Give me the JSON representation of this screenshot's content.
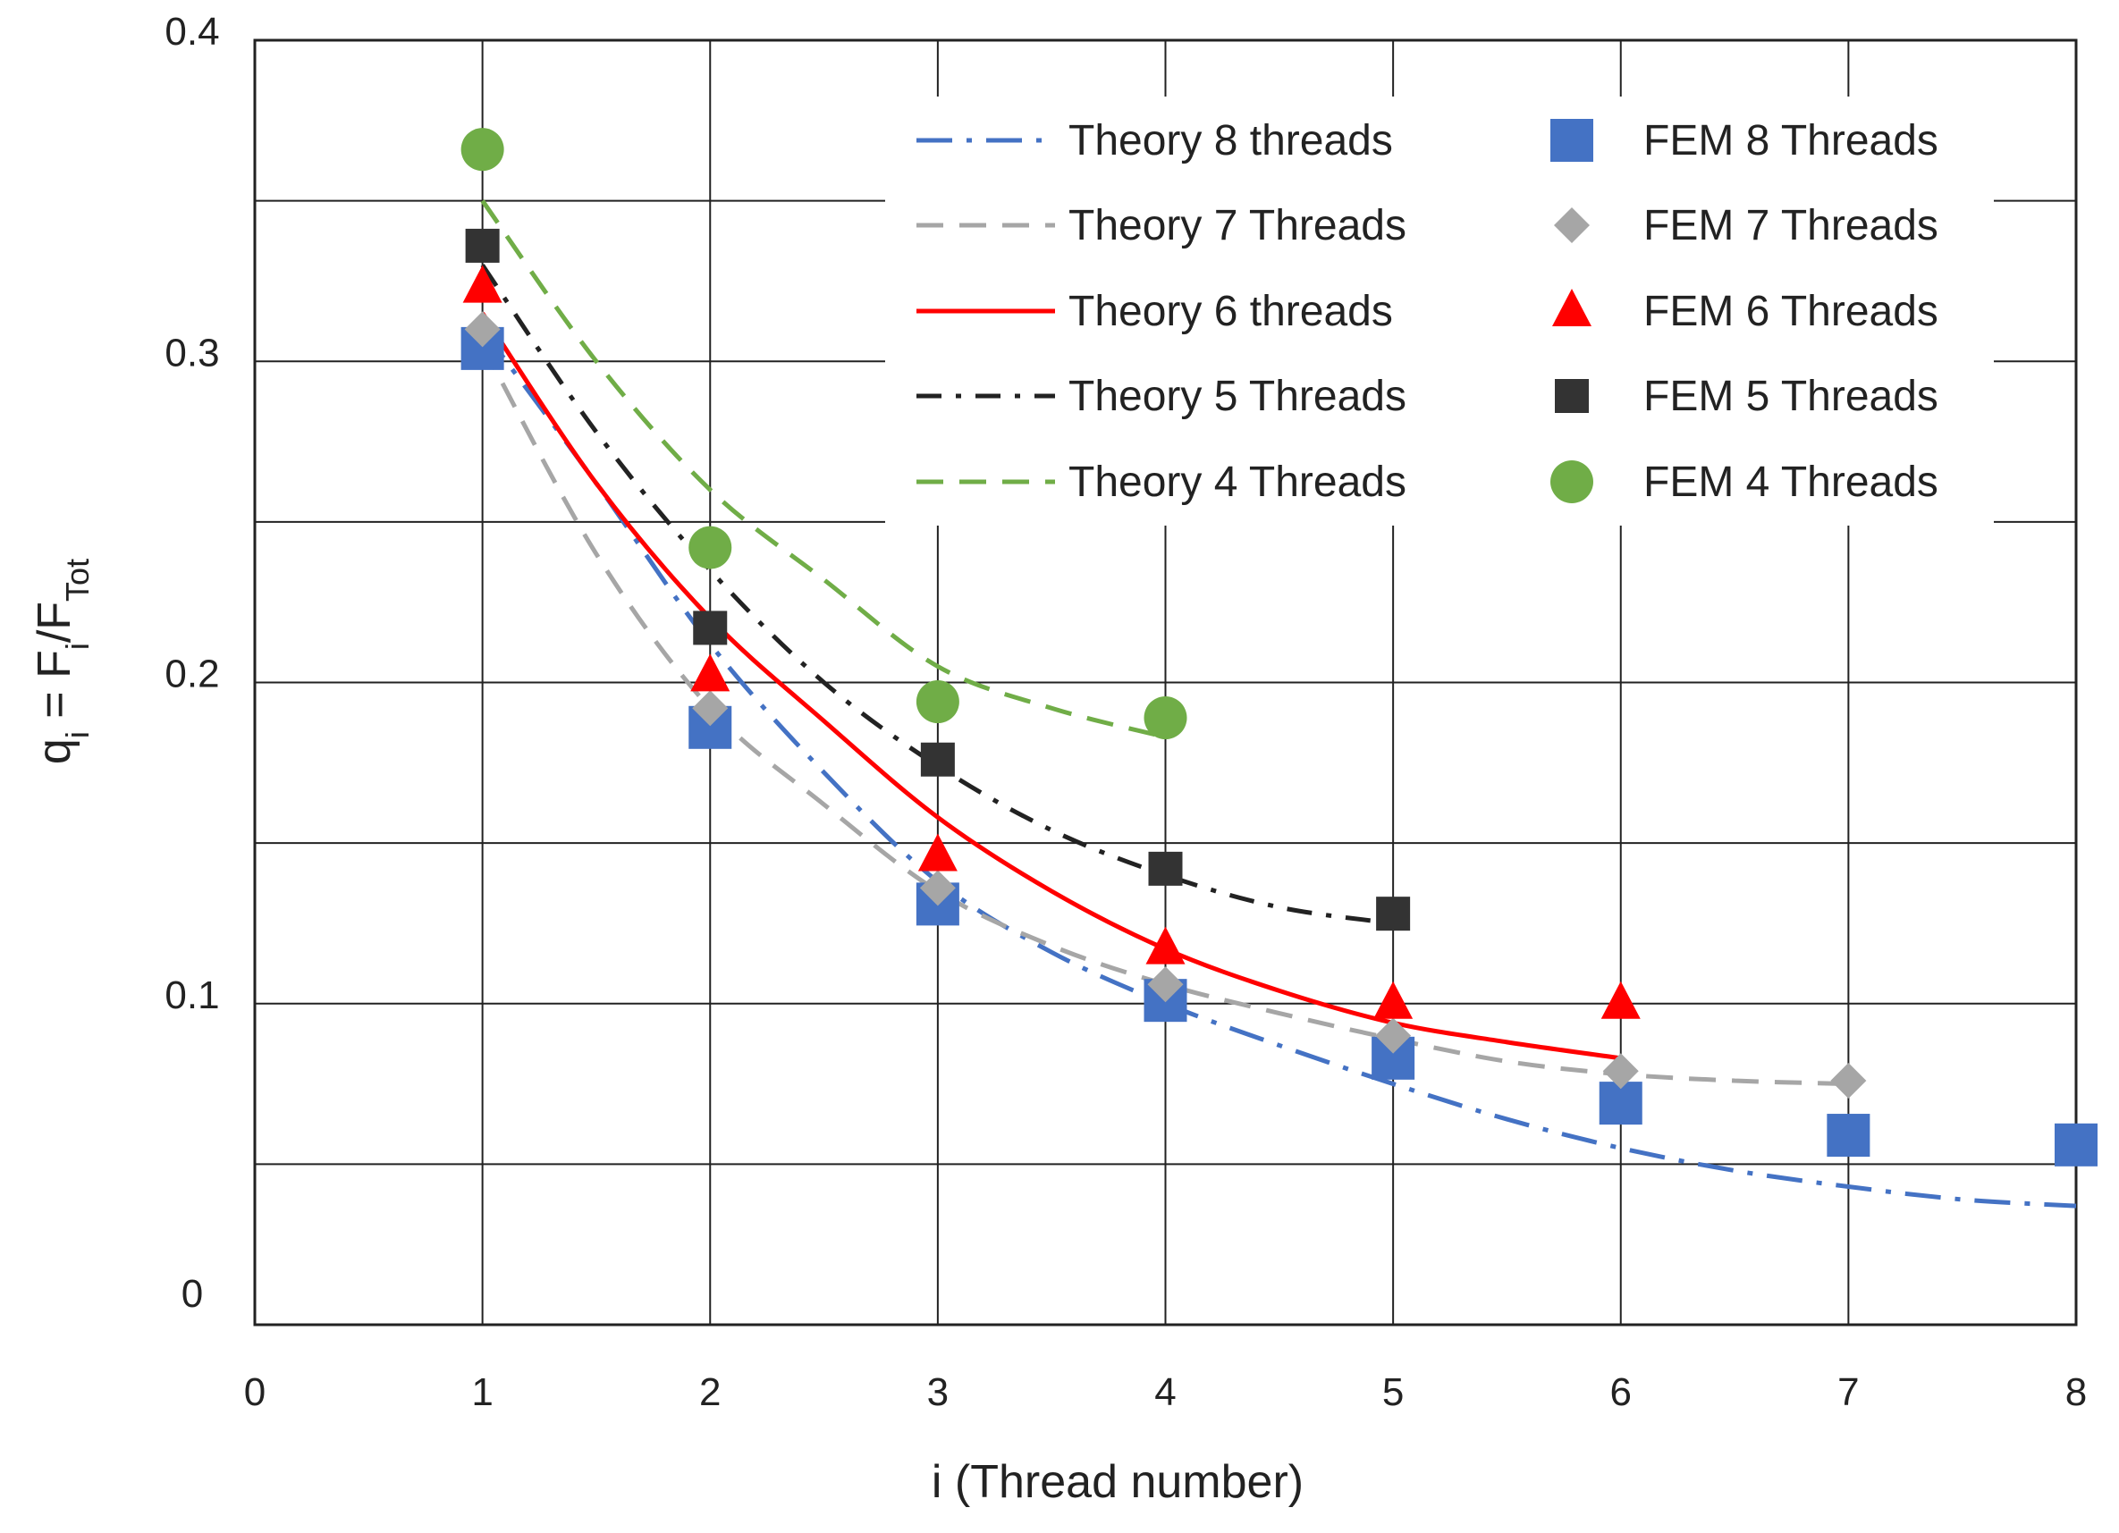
{
  "chart_data": {
    "type": "scatter",
    "title": "",
    "xlabel": "i (Thread number)",
    "ylabel": {
      "base": "q",
      "sub": "i",
      "eq": " = F",
      "sub2": "i",
      "slash": "/F",
      "sub3": "Tot"
    },
    "xlim": [
      0,
      8
    ],
    "ylim": [
      0,
      0.4
    ],
    "x_ticks": [
      "0",
      "1",
      "2",
      "3",
      "4",
      "5",
      "6",
      "7",
      "8"
    ],
    "y_ticks": [
      "0",
      "0.1",
      "0.2",
      "0.3",
      "0.4"
    ],
    "grid": true,
    "legend_position": "top-right",
    "theory_series": [
      {
        "name": "Theory 8 threads",
        "color": "#4472c4",
        "dash": "dashdot-long",
        "x": [
          1,
          1.5,
          2,
          2.5,
          3,
          3.5,
          4,
          4.5,
          5,
          5.5,
          6,
          6.5,
          7,
          7.5,
          8
        ],
        "y": [
          0.31,
          0.262,
          0.212,
          0.172,
          0.138,
          0.116,
          0.1,
          0.087,
          0.075,
          0.064,
          0.055,
          0.048,
          0.043,
          0.039,
          0.037
        ]
      },
      {
        "name": "Theory 7 Threads",
        "color": "#a6a6a6",
        "dash": "dash",
        "x": [
          1,
          1.5,
          2,
          2.5,
          3,
          3.5,
          4,
          4.5,
          5,
          5.5,
          6,
          6.5,
          7
        ],
        "y": [
          0.305,
          0.24,
          0.192,
          0.162,
          0.135,
          0.118,
          0.106,
          0.097,
          0.089,
          0.082,
          0.078,
          0.076,
          0.075
        ]
      },
      {
        "name": "Theory 6 threads",
        "color": "#ff0000",
        "dash": "solid",
        "x": [
          1,
          1.5,
          2,
          2.5,
          3,
          3.5,
          4,
          4.5,
          5,
          5.5,
          6
        ],
        "y": [
          0.315,
          0.262,
          0.22,
          0.188,
          0.158,
          0.135,
          0.117,
          0.104,
          0.094,
          0.088,
          0.083
        ]
      },
      {
        "name": "Theory 5 Threads",
        "color": "#222222",
        "dash": "dashdot",
        "x": [
          1,
          1.5,
          2,
          2.5,
          3,
          3.5,
          4,
          4.5,
          5
        ],
        "y": [
          0.33,
          0.278,
          0.235,
          0.2,
          0.174,
          0.154,
          0.14,
          0.13,
          0.125
        ]
      },
      {
        "name": "Theory 4 Threads",
        "color": "#70ad47",
        "dash": "dash",
        "x": [
          1,
          1.5,
          2,
          2.5,
          3,
          3.5,
          4
        ],
        "y": [
          0.35,
          0.3,
          0.26,
          0.232,
          0.205,
          0.192,
          0.183
        ]
      }
    ],
    "fem_series": [
      {
        "name": "FEM 8 Threads",
        "color": "#4472c4",
        "marker": "square",
        "x": [
          1,
          2,
          3,
          4,
          5,
          6,
          7,
          8
        ],
        "y": [
          0.304,
          0.186,
          0.131,
          0.101,
          0.083,
          0.069,
          0.059,
          0.056
        ]
      },
      {
        "name": "FEM 7 Threads",
        "color": "#a6a6a6",
        "marker": "diamond",
        "x": [
          1,
          2,
          3,
          4,
          5,
          6,
          7
        ],
        "y": [
          0.31,
          0.192,
          0.136,
          0.106,
          0.09,
          0.079,
          0.076
        ]
      },
      {
        "name": "FEM 6 Threads",
        "color": "#ff0000",
        "marker": "triangle",
        "x": [
          1,
          2,
          3,
          4,
          5,
          6
        ],
        "y": [
          0.323,
          0.202,
          0.146,
          0.117,
          0.1,
          0.1
        ]
      },
      {
        "name": "FEM 5 Threads",
        "color": "#333333",
        "marker": "square-small",
        "x": [
          1,
          2,
          3,
          4,
          5
        ],
        "y": [
          0.336,
          0.217,
          0.176,
          0.142,
          0.128
        ]
      },
      {
        "name": "FEM 4 Threads",
        "color": "#70ad47",
        "marker": "circle",
        "x": [
          1,
          2,
          3,
          4
        ],
        "y": [
          0.366,
          0.242,
          0.194,
          0.189
        ]
      }
    ]
  }
}
